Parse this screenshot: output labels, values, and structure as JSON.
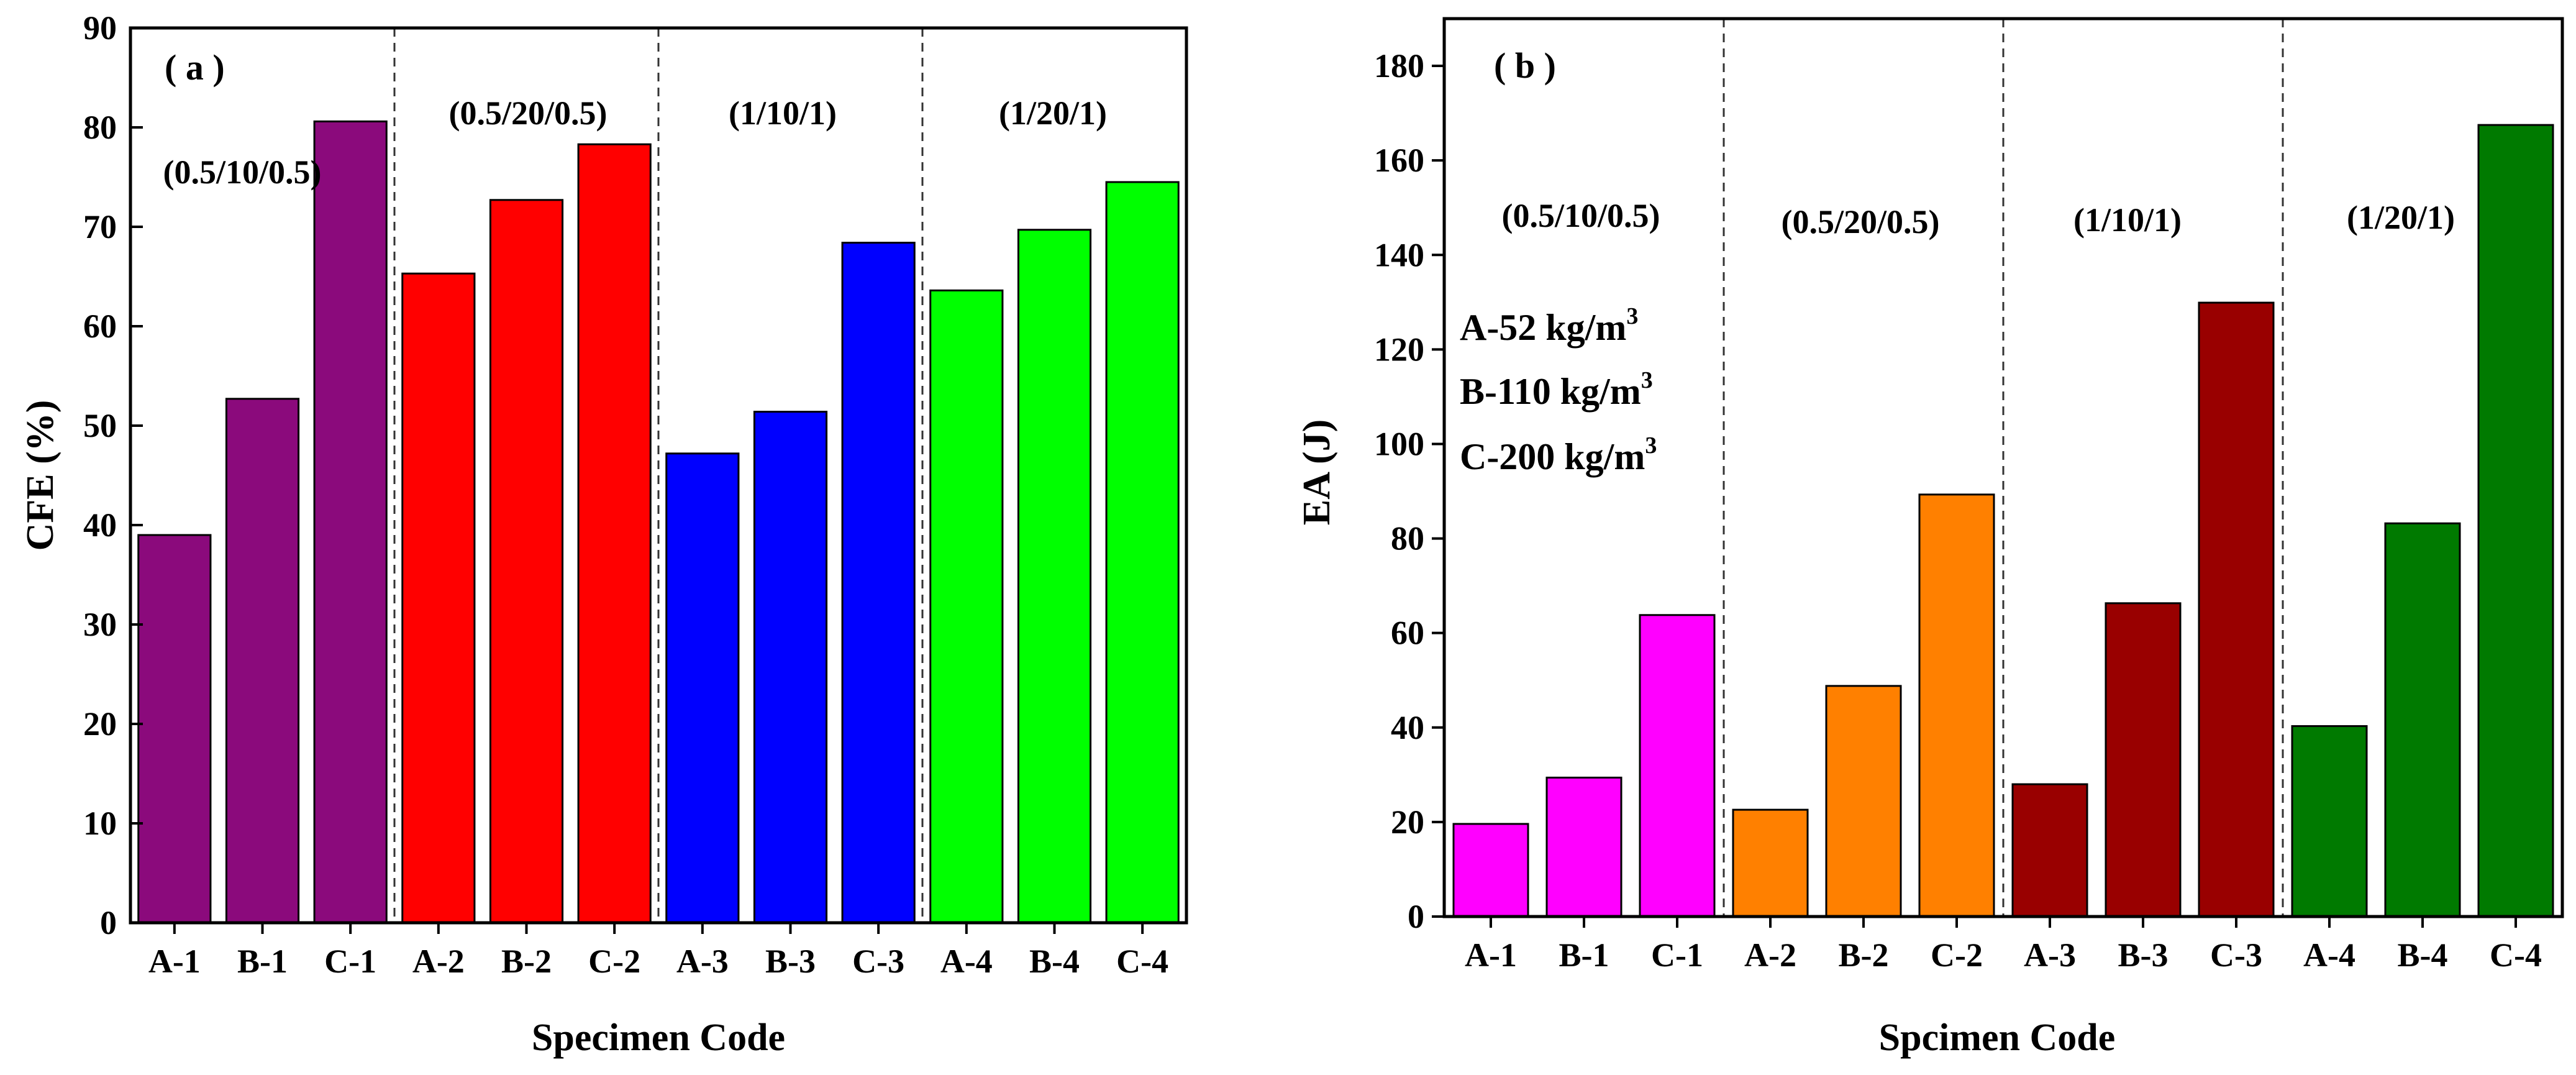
{
  "chart_data": [
    {
      "type": "bar",
      "panel_label": "( a )",
      "title": "",
      "xlabel": "Specimen Code",
      "ylabel": "CFE (%)",
      "ylim": [
        0,
        90
      ],
      "yticks": [
        "0",
        "10",
        "20",
        "30",
        "40",
        "50",
        "60",
        "70",
        "80",
        "90"
      ],
      "categories": [
        "A-1",
        "B-1",
        "C-1",
        "A-2",
        "B-2",
        "C-2",
        "A-3",
        "B-3",
        "C-3",
        "A-4",
        "B-4",
        "C-4"
      ],
      "values": [
        39,
        52.7,
        80.6,
        65.3,
        72.7,
        78.3,
        47.2,
        51.4,
        68.4,
        63.6,
        69.7,
        74.5
      ],
      "colors": [
        "#8b0a7c",
        "#8b0a7c",
        "#8b0a7c",
        "#ff0000",
        "#ff0000",
        "#ff0000",
        "#0000ff",
        "#0000ff",
        "#0000ff",
        "#00ff00",
        "#00ff00",
        "#00ff00"
      ],
      "groups": [
        "(0.5/10/0.5)",
        "(0.5/20/0.5)",
        "(1/10/1)",
        "(1/20/1)"
      ],
      "annotations": []
    },
    {
      "type": "bar",
      "panel_label": "( b )",
      "title": "",
      "xlabel": "Spcimen Code",
      "ylabel": "EA (J)",
      "ylim": [
        0,
        190
      ],
      "yticks": [
        "0",
        "20",
        "40",
        "60",
        "80",
        "100",
        "120",
        "140",
        "160",
        "180"
      ],
      "categories": [
        "A-1",
        "B-1",
        "C-1",
        "A-2",
        "B-2",
        "C-2",
        "A-3",
        "B-3",
        "C-3",
        "A-4",
        "B-4",
        "C-4"
      ],
      "values": [
        19.6,
        29.4,
        63.8,
        22.6,
        48.8,
        89.3,
        28,
        66.3,
        129.9,
        40.3,
        83.2,
        167.5
      ],
      "colors": [
        "#ff00ff",
        "#ff00ff",
        "#ff00ff",
        "#ff8000",
        "#ff8000",
        "#ff8000",
        "#990000",
        "#990000",
        "#990000",
        "#007a00",
        "#007a00",
        "#007a00"
      ],
      "groups": [
        "(0.5/10/0.5)",
        "(0.5/20/0.5)",
        "(1/10/1)",
        "(1/20/1)"
      ],
      "annotations": [
        {
          "text": "A-52  kg/m",
          "sup": "3"
        },
        {
          "text": "B-110  kg/m",
          "sup": "3"
        },
        {
          "text": "C-200  kg/m",
          "sup": "3"
        }
      ]
    }
  ]
}
